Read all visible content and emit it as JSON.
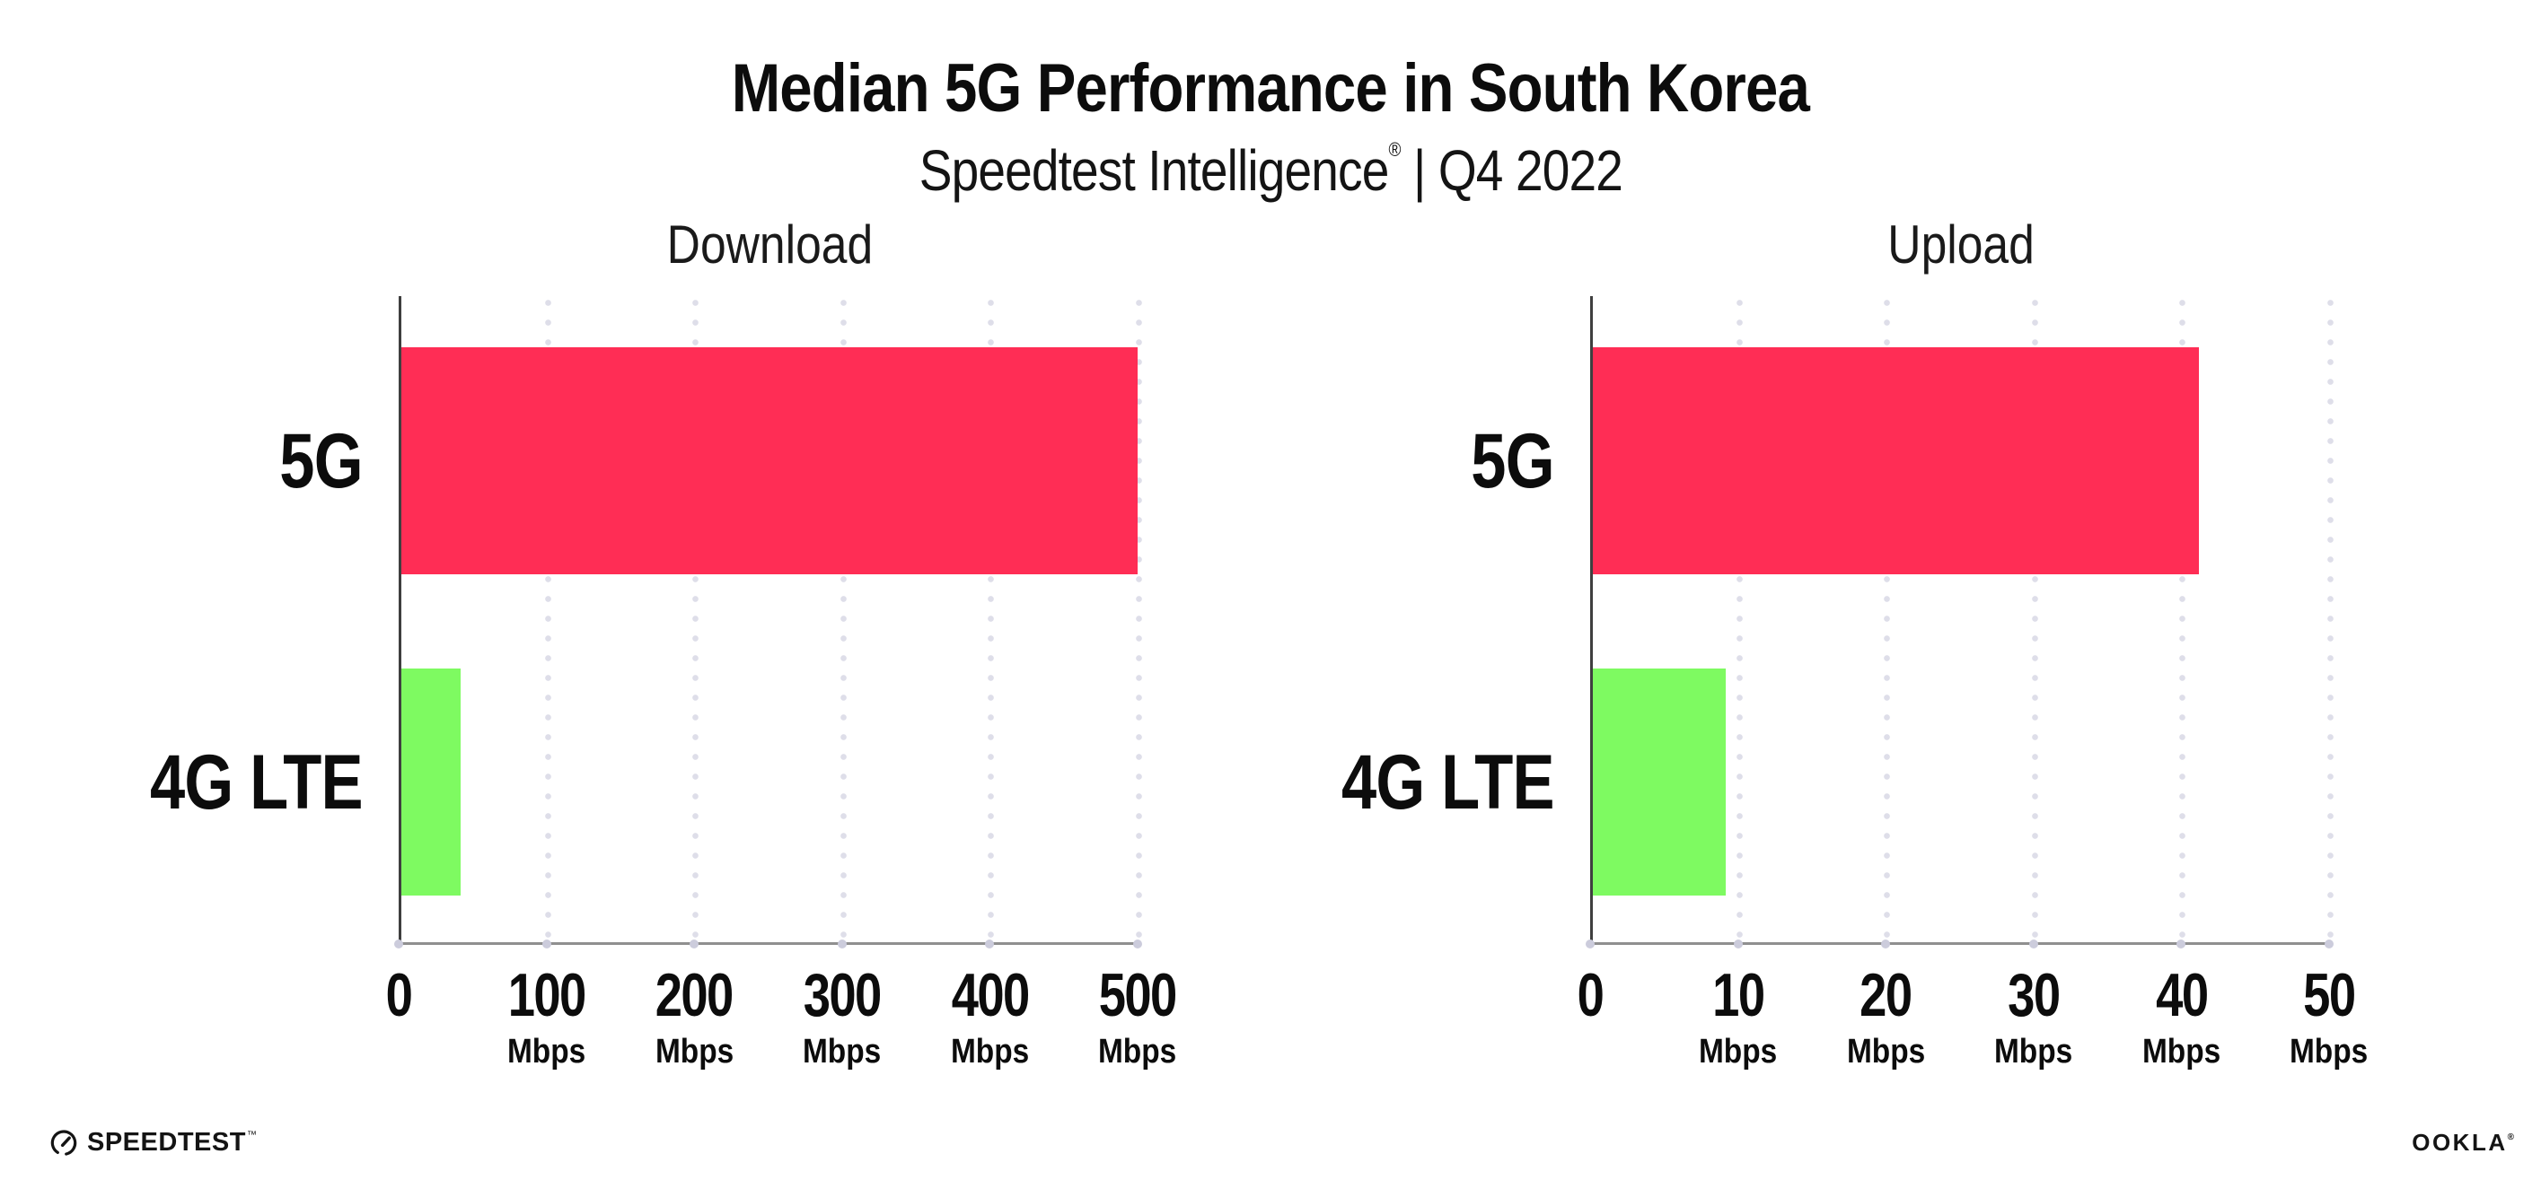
{
  "header": {
    "title": "Median 5G Performance in South Korea",
    "subtitle_brand": "Speedtest Intelligence",
    "subtitle_reg": "®",
    "subtitle_rest": " | Q4 2022"
  },
  "chart_data": [
    {
      "type": "bar",
      "orientation": "horizontal",
      "title": "Download",
      "categories": [
        "5G",
        "4G LTE"
      ],
      "values": [
        498,
        40
      ],
      "unit": "Mbps",
      "xlim": [
        0,
        500
      ],
      "xticks": [
        0,
        100,
        200,
        300,
        400,
        500
      ],
      "bar_colors": [
        "#FF2D55",
        "#7EFA61"
      ],
      "grid": "vertical-dotted",
      "legend": "none"
    },
    {
      "type": "bar",
      "orientation": "horizontal",
      "title": "Upload",
      "categories": [
        "5G",
        "4G LTE"
      ],
      "values": [
        41,
        9
      ],
      "unit": "Mbps",
      "xlim": [
        0,
        50
      ],
      "xticks": [
        0,
        10,
        20,
        30,
        40,
        50
      ],
      "bar_colors": [
        "#FF2D55",
        "#7EFA61"
      ],
      "grid": "vertical-dotted",
      "legend": "none"
    }
  ],
  "colors": {
    "bar_5g": "#FF2D55",
    "bar_4g_lte": "#7EFA61",
    "axis_line": "#8f8f8f",
    "y_axis_line": "#3f3f3f",
    "gridline_dots": "#dedee9",
    "text": "#0c0c0c"
  },
  "footer": {
    "speedtest_label": "SPEEDTEST",
    "speedtest_mark": "™",
    "ookla_label": "OOKLA",
    "ookla_mark": "®"
  }
}
